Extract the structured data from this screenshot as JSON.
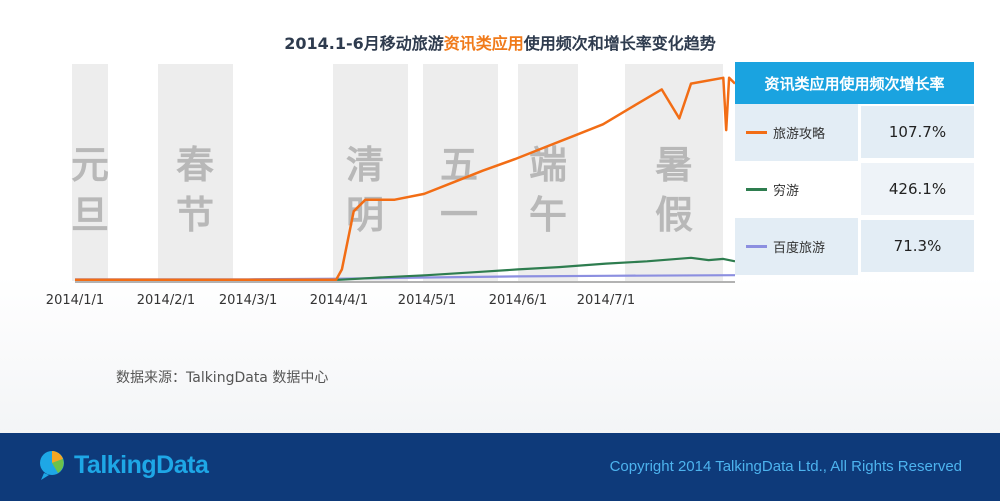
{
  "title": {
    "prefix": "2014.1-6月移动旅游",
    "highlight": "资讯类应用",
    "suffix": "使用频次和增长率变化趋势"
  },
  "chart_data": {
    "type": "line",
    "title": "2014.1-6月移动旅游资讯类应用使用频次和增长率变化趋势",
    "x_ticks": [
      "2014/1/1",
      "2014/2/1",
      "2014/3/1",
      "2014/4/1",
      "2014/5/1",
      "2014/6/1",
      "2014/7/1"
    ],
    "holidays": [
      {
        "label": "元旦",
        "chars": [
          "元",
          "旦"
        ]
      },
      {
        "label": "春节",
        "chars": [
          "春",
          "节"
        ]
      },
      {
        "label": "清明",
        "chars": [
          "清",
          "明"
        ]
      },
      {
        "label": "五一",
        "chars": [
          "五",
          "一"
        ]
      },
      {
        "label": "端午",
        "chars": [
          "端",
          "午"
        ]
      },
      {
        "label": "暑假",
        "chars": [
          "暑",
          "假"
        ]
      }
    ],
    "series": [
      {
        "name": "旅游攻略",
        "color": "#f26d15",
        "points": [
          [
            "2014-01-01",
            1
          ],
          [
            "2014-02-01",
            1
          ],
          [
            "2014-03-01",
            1
          ],
          [
            "2014-03-31",
            1
          ],
          [
            "2014-04-02",
            10
          ],
          [
            "2014-04-06",
            60
          ],
          [
            "2014-04-10",
            70
          ],
          [
            "2014-04-20",
            70
          ],
          [
            "2014-04-30",
            75
          ],
          [
            "2014-05-10",
            85
          ],
          [
            "2014-05-20",
            95
          ],
          [
            "2014-05-31",
            105
          ],
          [
            "2014-06-10",
            115
          ],
          [
            "2014-06-20",
            125
          ],
          [
            "2014-06-30",
            135
          ],
          [
            "2014-07-10",
            150
          ],
          [
            "2014-07-20",
            165
          ],
          [
            "2014-07-26",
            140
          ],
          [
            "2014-07-30",
            170
          ],
          [
            "2014-08-10",
            175
          ],
          [
            "2014-08-11",
            130
          ],
          [
            "2014-08-12",
            175
          ],
          [
            "2014-08-14",
            170
          ]
        ]
      },
      {
        "name": "穷游",
        "color": "#2e7d4f",
        "points": [
          [
            "2014-01-01",
            1
          ],
          [
            "2014-04-01",
            1
          ],
          [
            "2014-04-15",
            3
          ],
          [
            "2014-05-01",
            5
          ],
          [
            "2014-05-20",
            8
          ],
          [
            "2014-06-01",
            10
          ],
          [
            "2014-06-15",
            12
          ],
          [
            "2014-07-01",
            15
          ],
          [
            "2014-07-15",
            17
          ],
          [
            "2014-07-30",
            20
          ],
          [
            "2014-08-05",
            18
          ],
          [
            "2014-08-10",
            19
          ],
          [
            "2014-08-14",
            17
          ]
        ]
      },
      {
        "name": "百度旅游",
        "color": "#8c8fe0",
        "points": [
          [
            "2014-01-01",
            1.5
          ],
          [
            "2014-03-01",
            1.5
          ],
          [
            "2014-04-01",
            2
          ],
          [
            "2014-05-01",
            3
          ],
          [
            "2014-06-01",
            4
          ],
          [
            "2014-07-01",
            4.5
          ],
          [
            "2014-08-14",
            5
          ]
        ]
      }
    ]
  },
  "side_table": {
    "header": "资讯类应用使用频次增长率",
    "rows": [
      {
        "name": "旅游攻略",
        "value": "107.7%",
        "color": "#f26d15"
      },
      {
        "name": "穷游",
        "value": "426.1%",
        "color": "#2e7d4f"
      },
      {
        "name": "百度旅游",
        "value": "71.3%",
        "color": "#8c8fe0"
      }
    ]
  },
  "source": "数据来源：TalkingData 数据中心",
  "footer": {
    "logo": "TalkingData",
    "copyright": "Copyright 2014 TalkingData Ltd., All Rights Reserved"
  }
}
